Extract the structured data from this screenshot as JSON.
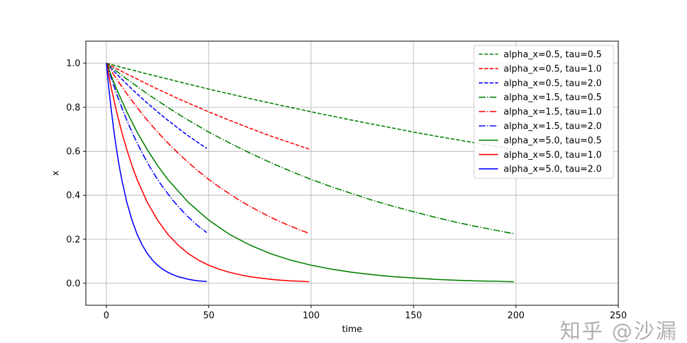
{
  "chart_data": {
    "type": "line",
    "title": "",
    "xlabel": "time",
    "ylabel": "x",
    "xlim": [
      -10,
      250
    ],
    "ylim": [
      -0.1,
      1.1
    ],
    "xticks": [
      0,
      50,
      100,
      150,
      200,
      250
    ],
    "yticks": [
      0.0,
      0.2,
      0.4,
      0.6,
      0.8,
      1.0
    ],
    "ytick_labels": [
      "0.0",
      "0.2",
      "0.4",
      "0.6",
      "0.8",
      "1.0"
    ],
    "grid": true,
    "legend_placement": "top-right",
    "series": [
      {
        "name": "alpha_x=0.5, tau=0.5",
        "color": "#008000",
        "style": "dashed",
        "x": [
          0,
          10,
          20,
          30,
          40,
          50,
          60,
          70,
          80,
          90,
          100,
          110,
          120,
          130,
          140,
          150,
          160,
          170,
          180,
          190,
          199
        ],
        "y": [
          1.0,
          0.975,
          0.951,
          0.928,
          0.905,
          0.882,
          0.861,
          0.839,
          0.819,
          0.799,
          0.779,
          0.76,
          0.741,
          0.723,
          0.705,
          0.687,
          0.67,
          0.654,
          0.638,
          0.622,
          0.608
        ]
      },
      {
        "name": "alpha_x=0.5, tau=1.0",
        "color": "#ff0000",
        "style": "dashed",
        "x": [
          0,
          5,
          10,
          15,
          20,
          25,
          30,
          35,
          40,
          45,
          50,
          55,
          60,
          65,
          70,
          75,
          80,
          85,
          90,
          95,
          99
        ],
        "y": [
          1.0,
          0.975,
          0.951,
          0.928,
          0.905,
          0.882,
          0.861,
          0.839,
          0.819,
          0.799,
          0.779,
          0.76,
          0.741,
          0.723,
          0.705,
          0.687,
          0.67,
          0.654,
          0.638,
          0.622,
          0.61
        ]
      },
      {
        "name": "alpha_x=0.5, tau=2.0",
        "color": "#0000ff",
        "style": "dashed",
        "x": [
          0,
          2.5,
          5,
          7.5,
          10,
          12.5,
          15,
          17.5,
          20,
          22.5,
          25,
          27.5,
          30,
          32.5,
          35,
          37.5,
          40,
          42.5,
          45,
          47.5,
          49
        ],
        "y": [
          1.0,
          0.975,
          0.951,
          0.928,
          0.905,
          0.882,
          0.861,
          0.839,
          0.819,
          0.799,
          0.779,
          0.76,
          0.741,
          0.723,
          0.705,
          0.687,
          0.67,
          0.654,
          0.638,
          0.622,
          0.613
        ]
      },
      {
        "name": "alpha_x=1.5, tau=0.5",
        "color": "#008000",
        "style": "dashdot",
        "x": [
          0,
          10,
          20,
          30,
          40,
          50,
          60,
          70,
          80,
          90,
          100,
          110,
          120,
          130,
          140,
          150,
          160,
          170,
          180,
          190,
          199
        ],
        "y": [
          1.0,
          0.928,
          0.861,
          0.799,
          0.741,
          0.687,
          0.638,
          0.592,
          0.549,
          0.509,
          0.472,
          0.438,
          0.407,
          0.377,
          0.35,
          0.325,
          0.301,
          0.279,
          0.259,
          0.241,
          0.225
        ]
      },
      {
        "name": "alpha_x=1.5, tau=1.0",
        "color": "#ff0000",
        "style": "dashdot",
        "x": [
          0,
          5,
          10,
          15,
          20,
          25,
          30,
          35,
          40,
          45,
          50,
          55,
          60,
          65,
          70,
          75,
          80,
          85,
          90,
          95,
          99
        ],
        "y": [
          1.0,
          0.928,
          0.861,
          0.799,
          0.741,
          0.687,
          0.638,
          0.592,
          0.549,
          0.509,
          0.472,
          0.438,
          0.407,
          0.377,
          0.35,
          0.325,
          0.301,
          0.279,
          0.259,
          0.241,
          0.227
        ]
      },
      {
        "name": "alpha_x=1.5, tau=2.0",
        "color": "#0000ff",
        "style": "dashdot",
        "x": [
          0,
          2.5,
          5,
          7.5,
          10,
          12.5,
          15,
          17.5,
          20,
          22.5,
          25,
          27.5,
          30,
          32.5,
          35,
          37.5,
          40,
          42.5,
          45,
          47.5,
          49
        ],
        "y": [
          1.0,
          0.928,
          0.861,
          0.799,
          0.741,
          0.687,
          0.638,
          0.592,
          0.549,
          0.509,
          0.472,
          0.438,
          0.407,
          0.377,
          0.35,
          0.325,
          0.301,
          0.279,
          0.259,
          0.241,
          0.23
        ]
      },
      {
        "name": "alpha_x=5.0, tau=0.5",
        "color": "#008000",
        "style": "solid",
        "x": [
          0,
          5,
          10,
          15,
          20,
          25,
          30,
          40,
          50,
          60,
          70,
          80,
          90,
          100,
          110,
          120,
          130,
          140,
          150,
          160,
          170,
          180,
          190,
          199
        ],
        "y": [
          1.0,
          0.882,
          0.779,
          0.687,
          0.607,
          0.535,
          0.472,
          0.368,
          0.287,
          0.223,
          0.174,
          0.135,
          0.105,
          0.082,
          0.064,
          0.05,
          0.039,
          0.03,
          0.024,
          0.018,
          0.014,
          0.011,
          0.009,
          0.007
        ]
      },
      {
        "name": "alpha_x=5.0, tau=1.0",
        "color": "#ff0000",
        "style": "solid",
        "x": [
          0,
          2.5,
          5,
          7.5,
          10,
          12.5,
          15,
          20,
          25,
          30,
          35,
          40,
          45,
          50,
          55,
          60,
          65,
          70,
          75,
          80,
          85,
          90,
          95,
          99
        ],
        "y": [
          1.0,
          0.882,
          0.779,
          0.687,
          0.607,
          0.535,
          0.472,
          0.368,
          0.287,
          0.223,
          0.174,
          0.135,
          0.105,
          0.082,
          0.064,
          0.05,
          0.039,
          0.03,
          0.024,
          0.018,
          0.014,
          0.011,
          0.009,
          0.007
        ]
      },
      {
        "name": "alpha_x=5.0, tau=2.0",
        "color": "#0000ff",
        "style": "solid",
        "x": [
          0,
          1.25,
          2.5,
          3.75,
          5,
          6.25,
          7.5,
          10,
          12.5,
          15,
          17.5,
          20,
          22.5,
          25,
          27.5,
          30,
          32.5,
          35,
          37.5,
          40,
          42.5,
          45,
          47.5,
          49
        ],
        "y": [
          1.0,
          0.882,
          0.779,
          0.687,
          0.607,
          0.535,
          0.472,
          0.368,
          0.287,
          0.223,
          0.174,
          0.135,
          0.105,
          0.082,
          0.064,
          0.05,
          0.039,
          0.03,
          0.024,
          0.018,
          0.014,
          0.011,
          0.009,
          0.008
        ]
      }
    ]
  },
  "watermark": "知乎 @沙漏"
}
